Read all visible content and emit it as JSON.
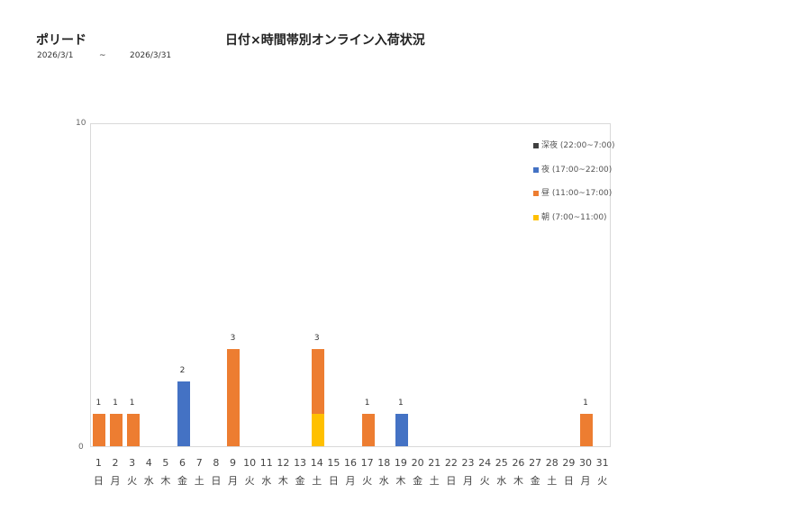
{
  "header": {
    "store_name": "ポリード",
    "title": "日付×時間帯別オンライン入荷状況",
    "date_from": "2026/3/1",
    "date_sep": "~",
    "date_to": "2026/3/31"
  },
  "colors": {
    "late_night": "#404040",
    "night": "#4472c4",
    "day": "#ed7d31",
    "morning": "#ffc000"
  },
  "chart_data": {
    "type": "bar",
    "stacked": true,
    "title": "日付×時間帯別オンライン入荷状況",
    "xlabel": "",
    "ylabel": "",
    "ylim": [
      0,
      10
    ],
    "yticks": [
      "0",
      "10"
    ],
    "grid": false,
    "legend_position": "right-inside",
    "categories": [
      "1",
      "2",
      "3",
      "4",
      "5",
      "6",
      "7",
      "8",
      "9",
      "10",
      "11",
      "12",
      "13",
      "14",
      "15",
      "16",
      "17",
      "18",
      "19",
      "20",
      "21",
      "22",
      "23",
      "24",
      "25",
      "26",
      "27",
      "28",
      "29",
      "30",
      "31"
    ],
    "weekdays": [
      "日",
      "月",
      "火",
      "水",
      "木",
      "金",
      "土",
      "日",
      "月",
      "火",
      "水",
      "木",
      "金",
      "土",
      "日",
      "月",
      "火",
      "水",
      "木",
      "金",
      "土",
      "日",
      "月",
      "火",
      "水",
      "木",
      "金",
      "土",
      "日",
      "月",
      "火"
    ],
    "series": [
      {
        "name": "朝 (7:00~11:00)",
        "color": "#ffc000",
        "values": [
          0,
          0,
          0,
          0,
          0,
          0,
          0,
          0,
          0,
          0,
          0,
          0,
          0,
          1,
          0,
          0,
          0,
          0,
          0,
          0,
          0,
          0,
          0,
          0,
          0,
          0,
          0,
          0,
          0,
          0,
          0
        ]
      },
      {
        "name": "昼 (11:00~17:00)",
        "color": "#ed7d31",
        "values": [
          1,
          1,
          1,
          0,
          0,
          0,
          0,
          0,
          3,
          0,
          0,
          0,
          0,
          2,
          0,
          0,
          1,
          0,
          0,
          0,
          0,
          0,
          0,
          0,
          0,
          0,
          0,
          0,
          0,
          1,
          0
        ]
      },
      {
        "name": "夜 (17:00~22:00)",
        "color": "#4472c4",
        "values": [
          0,
          0,
          0,
          0,
          0,
          2,
          0,
          0,
          0,
          0,
          0,
          0,
          0,
          0,
          0,
          0,
          0,
          0,
          1,
          0,
          0,
          0,
          0,
          0,
          0,
          0,
          0,
          0,
          0,
          0,
          0
        ]
      },
      {
        "name": "深夜 (22:00~7:00)",
        "color": "#404040",
        "values": [
          0,
          0,
          0,
          0,
          0,
          0,
          0,
          0,
          0,
          0,
          0,
          0,
          0,
          0,
          0,
          0,
          0,
          0,
          0,
          0,
          0,
          0,
          0,
          0,
          0,
          0,
          0,
          0,
          0,
          0,
          0
        ]
      }
    ],
    "totals": [
      1,
      1,
      1,
      0,
      0,
      2,
      0,
      0,
      3,
      0,
      0,
      0,
      0,
      3,
      0,
      0,
      1,
      0,
      1,
      0,
      0,
      0,
      0,
      0,
      0,
      0,
      0,
      0,
      0,
      1,
      0
    ]
  },
  "legend": [
    {
      "label": "深夜 (22:00~7:00)",
      "color": "#404040"
    },
    {
      "label": "夜 (17:00~22:00)",
      "color": "#4472c4"
    },
    {
      "label": "昼 (11:00~17:00)",
      "color": "#ed7d31"
    },
    {
      "label": "朝 (7:00~11:00)",
      "color": "#ffc000"
    }
  ]
}
